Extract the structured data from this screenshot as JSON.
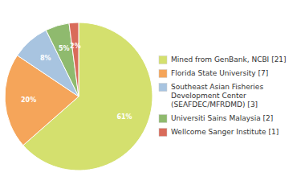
{
  "chart_data": {
    "type": "pie",
    "categories": [
      "Mined from GenBank, NCBI [21]",
      "Florida State University [7]",
      "Southeast Asian Fisheries\nDevelopment Center\n(SEAFDEC/MFRDMD) [3]",
      "Universiti Sains Malaysia [2]",
      "Wellcome Sanger Institute [1]"
    ],
    "values": [
      61,
      20,
      8,
      5,
      2
    ],
    "value_labels": [
      "61%",
      "20%",
      "8%",
      "5%",
      "2%"
    ],
    "colors": [
      "#d4e06e",
      "#f5a55a",
      "#a8c4e0",
      "#8fba6e",
      "#d96b5a"
    ],
    "data_labels": true,
    "legend": "right"
  }
}
